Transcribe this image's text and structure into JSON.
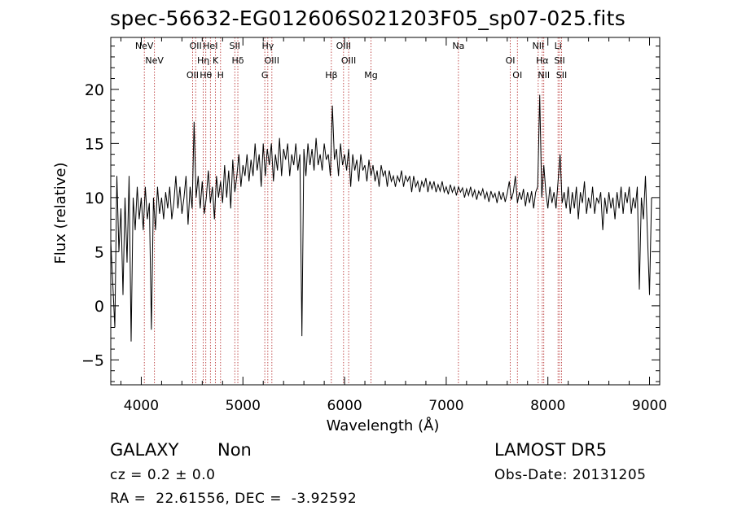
{
  "chart_data": {
    "type": "line",
    "title": "spec-56632-EG012606S021203F05_sp07-025.fits",
    "xlabel": "Wavelength (Å)",
    "ylabel": "Flux (relative)",
    "xlim": [
      3700,
      9100
    ],
    "ylim": [
      -7.3,
      24.8
    ],
    "xticks": [
      4000,
      5000,
      6000,
      7000,
      8000,
      9000
    ],
    "yticks": [
      -5,
      0,
      5,
      10,
      15,
      20
    ],
    "xtick_labels": [
      "4000",
      "5000",
      "6000",
      "7000",
      "8000",
      "9000"
    ],
    "ytick_labels": [
      "−5",
      "0",
      "5",
      "10",
      "15",
      "20"
    ],
    "grid": false,
    "line_color": "#000000",
    "marker_color": "#b22222",
    "series": [
      {
        "values": [
          [
            3700,
            6.0
          ],
          [
            3720,
            2.0
          ],
          [
            3740,
            -2.0
          ],
          [
            3760,
            12.0
          ],
          [
            3780,
            5.0
          ],
          [
            3800,
            9.0
          ],
          [
            3820,
            1.0
          ],
          [
            3840,
            10.0
          ],
          [
            3860,
            4.0
          ],
          [
            3880,
            12.0
          ],
          [
            3900,
            -3.3
          ],
          [
            3920,
            10.0
          ],
          [
            3940,
            7.0
          ],
          [
            3960,
            11.0
          ],
          [
            3980,
            8.0
          ],
          [
            4000,
            10.0
          ],
          [
            4020,
            7.0
          ],
          [
            4040,
            11.0
          ],
          [
            4060,
            8.0
          ],
          [
            4080,
            9.5
          ],
          [
            4100,
            -2.2
          ],
          [
            4120,
            10.0
          ],
          [
            4140,
            7.0
          ],
          [
            4160,
            11.0
          ],
          [
            4180,
            8.5
          ],
          [
            4200,
            10.0
          ],
          [
            4220,
            8.0
          ],
          [
            4240,
            10.5
          ],
          [
            4260,
            9.0
          ],
          [
            4280,
            11.0
          ],
          [
            4300,
            8.0
          ],
          [
            4320,
            9.5
          ],
          [
            4340,
            12.0
          ],
          [
            4360,
            9.0
          ],
          [
            4380,
            11.0
          ],
          [
            4400,
            8.5
          ],
          [
            4420,
            10.0
          ],
          [
            4440,
            12.0
          ],
          [
            4460,
            7.5
          ],
          [
            4480,
            11.0
          ],
          [
            4500,
            9.0
          ],
          [
            4520,
            17.0
          ],
          [
            4540,
            10.0
          ],
          [
            4560,
            12.0
          ],
          [
            4580,
            9.0
          ],
          [
            4600,
            11.5
          ],
          [
            4620,
            8.5
          ],
          [
            4640,
            10.0
          ],
          [
            4660,
            12.5
          ],
          [
            4680,
            9.5
          ],
          [
            4700,
            11.0
          ],
          [
            4720,
            8.0
          ],
          [
            4740,
            12.0
          ],
          [
            4760,
            10.0
          ],
          [
            4780,
            11.5
          ],
          [
            4800,
            9.5
          ],
          [
            4820,
            13.0
          ],
          [
            4840,
            10.0
          ],
          [
            4860,
            12.5
          ],
          [
            4880,
            9.0
          ],
          [
            4900,
            13.5
          ],
          [
            4920,
            10.5
          ],
          [
            4940,
            12.0
          ],
          [
            4960,
            14.0
          ],
          [
            4980,
            11.0
          ],
          [
            5000,
            13.0
          ],
          [
            5020,
            12.0
          ],
          [
            5040,
            14.0
          ],
          [
            5060,
            11.5
          ],
          [
            5080,
            13.5
          ],
          [
            5100,
            12.0
          ],
          [
            5120,
            15.0
          ],
          [
            5140,
            12.5
          ],
          [
            5160,
            14.0
          ],
          [
            5180,
            11.0
          ],
          [
            5200,
            15.0
          ],
          [
            5220,
            12.0
          ],
          [
            5240,
            14.5
          ],
          [
            5260,
            13.0
          ],
          [
            5280,
            15.0
          ],
          [
            5300,
            11.5
          ],
          [
            5320,
            14.0
          ],
          [
            5340,
            12.5
          ],
          [
            5360,
            15.5
          ],
          [
            5380,
            12.0
          ],
          [
            5400,
            14.5
          ],
          [
            5420,
            13.5
          ],
          [
            5440,
            15.0
          ],
          [
            5460,
            12.0
          ],
          [
            5480,
            14.0
          ],
          [
            5500,
            13.0
          ],
          [
            5520,
            15.0
          ],
          [
            5540,
            12.5
          ],
          [
            5560,
            14.0
          ],
          [
            5580,
            -2.8
          ],
          [
            5600,
            14.5
          ],
          [
            5620,
            12.0
          ],
          [
            5640,
            15.0
          ],
          [
            5660,
            13.0
          ],
          [
            5680,
            14.5
          ],
          [
            5700,
            12.5
          ],
          [
            5720,
            15.5
          ],
          [
            5740,
            13.0
          ],
          [
            5760,
            14.0
          ],
          [
            5780,
            12.5
          ],
          [
            5800,
            15.0
          ],
          [
            5820,
            13.5
          ],
          [
            5840,
            14.0
          ],
          [
            5860,
            12.0
          ],
          [
            5880,
            18.5
          ],
          [
            5900,
            13.5
          ],
          [
            5920,
            14.5
          ],
          [
            5940,
            12.0
          ],
          [
            5960,
            15.0
          ],
          [
            5980,
            13.0
          ],
          [
            6000,
            14.0
          ],
          [
            6020,
            12.5
          ],
          [
            6040,
            14.5
          ],
          [
            6060,
            11.0
          ],
          [
            6080,
            14.0
          ],
          [
            6100,
            12.5
          ],
          [
            6120,
            13.5
          ],
          [
            6140,
            11.5
          ],
          [
            6160,
            14.0
          ],
          [
            6180,
            12.5
          ],
          [
            6200,
            13.0
          ],
          [
            6220,
            11.5
          ],
          [
            6240,
            13.5
          ],
          [
            6260,
            12.0
          ],
          [
            6280,
            13.0
          ],
          [
            6300,
            11.5
          ],
          [
            6320,
            12.5
          ],
          [
            6340,
            11.0
          ],
          [
            6360,
            13.0
          ],
          [
            6380,
            12.0
          ],
          [
            6400,
            12.5
          ],
          [
            6420,
            11.0
          ],
          [
            6440,
            12.5
          ],
          [
            6460,
            11.5
          ],
          [
            6480,
            12.0
          ],
          [
            6500,
            11.0
          ],
          [
            6520,
            12.0
          ],
          [
            6540,
            11.5
          ],
          [
            6560,
            12.5
          ],
          [
            6580,
            11.0
          ],
          [
            6600,
            12.0
          ],
          [
            6620,
            11.5
          ],
          [
            6640,
            12.0
          ],
          [
            6660,
            10.5
          ],
          [
            6680,
            12.0
          ],
          [
            6700,
            11.0
          ],
          [
            6720,
            11.5
          ],
          [
            6740,
            10.5
          ],
          [
            6760,
            11.5
          ],
          [
            6780,
            11.0
          ],
          [
            6800,
            11.8
          ],
          [
            6820,
            10.5
          ],
          [
            6840,
            11.5
          ],
          [
            6860,
            10.8
          ],
          [
            6880,
            11.5
          ],
          [
            6900,
            10.5
          ],
          [
            6920,
            11.2
          ],
          [
            6940,
            10.6
          ],
          [
            6960,
            11.5
          ],
          [
            6980,
            10.5
          ],
          [
            7000,
            11.0
          ],
          [
            7020,
            10.3
          ],
          [
            7040,
            11.2
          ],
          [
            7060,
            10.5
          ],
          [
            7080,
            11.0
          ],
          [
            7100,
            10.2
          ],
          [
            7120,
            11.0
          ],
          [
            7140,
            10.5
          ],
          [
            7160,
            10.9
          ],
          [
            7180,
            10.0
          ],
          [
            7200,
            10.8
          ],
          [
            7220,
            10.2
          ],
          [
            7240,
            11.0
          ],
          [
            7260,
            10.1
          ],
          [
            7280,
            10.7
          ],
          [
            7300,
            9.8
          ],
          [
            7320,
            10.6
          ],
          [
            7340,
            10.2
          ],
          [
            7360,
            10.8
          ],
          [
            7380,
            9.9
          ],
          [
            7400,
            10.5
          ],
          [
            7420,
            9.6
          ],
          [
            7440,
            10.6
          ],
          [
            7460,
            10.0
          ],
          [
            7480,
            10.4
          ],
          [
            7500,
            9.5
          ],
          [
            7520,
            10.6
          ],
          [
            7540,
            9.8
          ],
          [
            7560,
            10.5
          ],
          [
            7580,
            9.6
          ],
          [
            7600,
            10.4
          ],
          [
            7620,
            11.5
          ],
          [
            7640,
            9.8
          ],
          [
            7660,
            10.5
          ],
          [
            7680,
            12.0
          ],
          [
            7700,
            9.5
          ],
          [
            7720,
            10.5
          ],
          [
            7740,
            9.8
          ],
          [
            7760,
            10.8
          ],
          [
            7780,
            9.2
          ],
          [
            7800,
            10.5
          ],
          [
            7820,
            9.5
          ],
          [
            7840,
            10.6
          ],
          [
            7860,
            9.0
          ],
          [
            7880,
            10.5
          ],
          [
            7900,
            11.0
          ],
          [
            7920,
            19.5
          ],
          [
            7940,
            10.0
          ],
          [
            7960,
            13.0
          ],
          [
            7980,
            10.5
          ],
          [
            8000,
            9.0
          ],
          [
            8020,
            11.0
          ],
          [
            8040,
            9.5
          ],
          [
            8060,
            10.5
          ],
          [
            8080,
            9.0
          ],
          [
            8100,
            11.5
          ],
          [
            8120,
            14.0
          ],
          [
            8140,
            9.5
          ],
          [
            8160,
            10.5
          ],
          [
            8180,
            9.0
          ],
          [
            8200,
            11.0
          ],
          [
            8220,
            8.5
          ],
          [
            8240,
            10.5
          ],
          [
            8260,
            9.0
          ],
          [
            8280,
            11.0
          ],
          [
            8300,
            8.0
          ],
          [
            8320,
            10.5
          ],
          [
            8340,
            9.5
          ],
          [
            8360,
            11.5
          ],
          [
            8380,
            8.5
          ],
          [
            8400,
            10.0
          ],
          [
            8420,
            9.0
          ],
          [
            8440,
            11.0
          ],
          [
            8460,
            8.5
          ],
          [
            8480,
            10.0
          ],
          [
            8500,
            9.5
          ],
          [
            8520,
            10.5
          ],
          [
            8540,
            7.0
          ],
          [
            8560,
            10.0
          ],
          [
            8580,
            8.5
          ],
          [
            8600,
            10.5
          ],
          [
            8620,
            9.0
          ],
          [
            8640,
            10.0
          ],
          [
            8660,
            8.0
          ],
          [
            8680,
            10.5
          ],
          [
            8700,
            9.0
          ],
          [
            8720,
            11.0
          ],
          [
            8740,
            8.5
          ],
          [
            8760,
            10.5
          ],
          [
            8780,
            9.5
          ],
          [
            8800,
            11.0
          ],
          [
            8820,
            8.5
          ],
          [
            8840,
            10.0
          ],
          [
            8860,
            9.0
          ],
          [
            8880,
            11.0
          ],
          [
            8900,
            1.5
          ],
          [
            8920,
            10.0
          ],
          [
            8940,
            8.0
          ],
          [
            8960,
            12.0
          ],
          [
            8980,
            6.5
          ],
          [
            9000,
            1.0
          ],
          [
            9020,
            10.0
          ]
        ]
      }
    ],
    "line_markers": [
      {
        "x": 4030,
        "label": "NeV"
      },
      {
        "x": 4130,
        "label": "NeV"
      },
      {
        "x": 4505,
        "label": "OII"
      },
      {
        "x": 4535,
        "label": "OII"
      },
      {
        "x": 4610,
        "label": "Hη"
      },
      {
        "x": 4635,
        "label": "Hθ"
      },
      {
        "x": 4680,
        "label": "HeI"
      },
      {
        "x": 4730,
        "label": "K"
      },
      {
        "x": 4780,
        "label": "H"
      },
      {
        "x": 4920,
        "label": "SII"
      },
      {
        "x": 4950,
        "label": "Hδ"
      },
      {
        "x": 5215,
        "label": "G"
      },
      {
        "x": 5245,
        "label": "Hγ"
      },
      {
        "x": 5285,
        "label": "OIII"
      },
      {
        "x": 5870,
        "label": "Hβ"
      },
      {
        "x": 5990,
        "label": "OIII"
      },
      {
        "x": 6040,
        "label": "OIII"
      },
      {
        "x": 6260,
        "label": "Mg"
      },
      {
        "x": 7120,
        "label": "Na"
      },
      {
        "x": 7630,
        "label": "OI"
      },
      {
        "x": 7700,
        "label": "OI"
      },
      {
        "x": 7905,
        "label": "NII"
      },
      {
        "x": 7945,
        "label": "Hα"
      },
      {
        "x": 7960,
        "label": "NII"
      },
      {
        "x": 8100,
        "label": "Li"
      },
      {
        "x": 8115,
        "label": "SII"
      },
      {
        "x": 8135,
        "label": "SII"
      }
    ]
  },
  "info": {
    "object_class": "GALAXY",
    "subclass": "Non",
    "survey": "LAMOST DR5",
    "redshift": "cz = 0.2 ± 0.0",
    "obs_date": "Obs-Date: 20131205",
    "coords": "RA =  22.61556, DEC =  -3.92592"
  }
}
